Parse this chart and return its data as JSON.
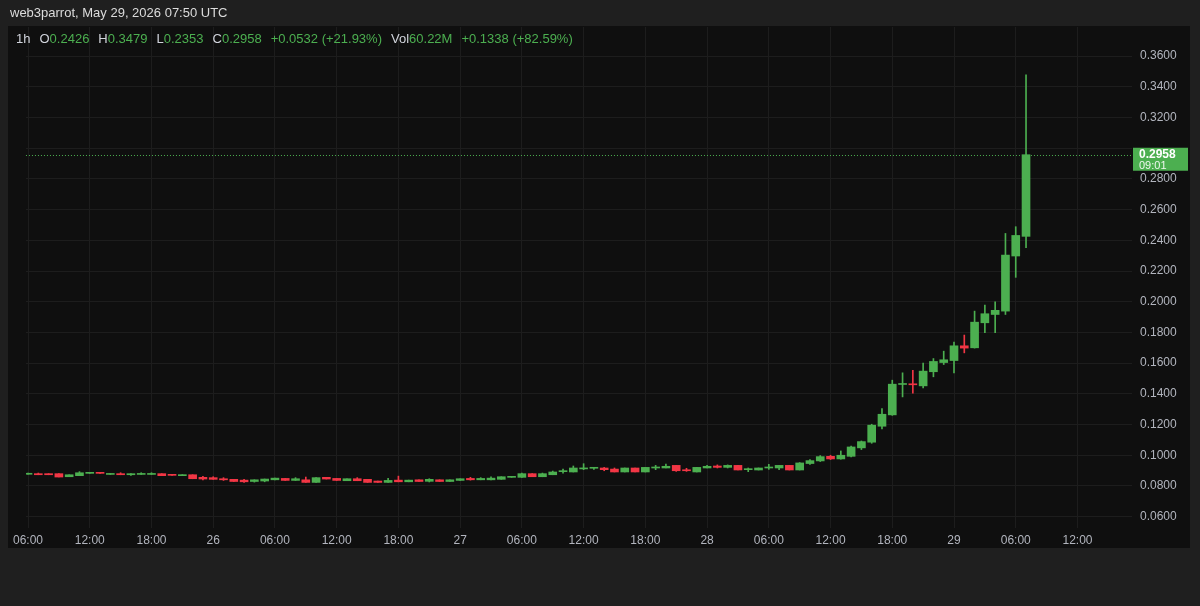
{
  "chart_data": {
    "type": "candlestick",
    "title": "web3parrot, May 29, 2026 07:50 UTC",
    "subtitle": "1h",
    "annotations": [
      "O0.2426",
      "H0.3479",
      "L0.2353",
      "C0.2958",
      "+0.0532 (+21.93%)",
      "Vol60.22M",
      "+0.1338 (+82.59%)"
    ],
    "x": [
      "2026-05-25T06:00",
      "2026-05-25T07:00",
      "2026-05-25T08:00",
      "2026-05-25T09:00",
      "2026-05-25T10:00",
      "2026-05-25T11:00",
      "2026-05-25T12:00",
      "2026-05-25T13:00",
      "2026-05-25T14:00",
      "2026-05-25T15:00",
      "2026-05-25T16:00",
      "2026-05-25T17:00",
      "2026-05-25T18:00",
      "2026-05-25T19:00",
      "2026-05-25T20:00",
      "2026-05-25T21:00",
      "2026-05-25T22:00",
      "2026-05-25T23:00",
      "2026-05-26T00:00",
      "2026-05-26T01:00",
      "2026-05-26T02:00",
      "2026-05-26T03:00",
      "2026-05-26T04:00",
      "2026-05-26T05:00",
      "2026-05-26T06:00",
      "2026-05-26T07:00",
      "2026-05-26T08:00",
      "2026-05-26T09:00",
      "2026-05-26T10:00",
      "2026-05-26T11:00",
      "2026-05-26T12:00",
      "2026-05-26T13:00",
      "2026-05-26T14:00",
      "2026-05-26T15:00",
      "2026-05-26T16:00",
      "2026-05-26T17:00",
      "2026-05-26T18:00",
      "2026-05-26T19:00",
      "2026-05-26T20:00",
      "2026-05-26T21:00",
      "2026-05-26T22:00",
      "2026-05-26T23:00",
      "2026-05-27T00:00",
      "2026-05-27T01:00",
      "2026-05-27T02:00",
      "2026-05-27T03:00",
      "2026-05-27T04:00",
      "2026-05-27T05:00",
      "2026-05-27T06:00",
      "2026-05-27T07:00",
      "2026-05-27T08:00",
      "2026-05-27T09:00",
      "2026-05-27T10:00",
      "2026-05-27T11:00",
      "2026-05-27T12:00",
      "2026-05-27T13:00",
      "2026-05-27T14:00",
      "2026-05-27T15:00",
      "2026-05-27T16:00",
      "2026-05-27T17:00",
      "2026-05-27T18:00",
      "2026-05-27T19:00",
      "2026-05-27T20:00",
      "2026-05-27T21:00",
      "2026-05-27T22:00",
      "2026-05-27T23:00",
      "2026-05-28T00:00",
      "2026-05-28T01:00",
      "2026-05-28T02:00",
      "2026-05-28T03:00",
      "2026-05-28T04:00",
      "2026-05-28T05:00",
      "2026-05-28T06:00",
      "2026-05-28T07:00",
      "2026-05-28T08:00",
      "2026-05-28T09:00",
      "2026-05-28T10:00",
      "2026-05-28T11:00",
      "2026-05-28T12:00",
      "2026-05-28T13:00",
      "2026-05-28T14:00",
      "2026-05-28T15:00",
      "2026-05-28T16:00",
      "2026-05-28T17:00",
      "2026-05-28T18:00",
      "2026-05-28T19:00",
      "2026-05-28T20:00",
      "2026-05-28T21:00",
      "2026-05-28T22:00",
      "2026-05-28T23:00",
      "2026-05-29T00:00",
      "2026-05-29T01:00",
      "2026-05-29T02:00",
      "2026-05-29T03:00",
      "2026-05-29T04:00",
      "2026-05-29T05:00",
      "2026-05-29T06:00",
      "2026-05-29T07:00"
    ],
    "ohlc": [
      [
        0.0876,
        0.0884,
        0.0876,
        0.088
      ],
      [
        0.088,
        0.0884,
        0.0873,
        0.0873
      ],
      [
        0.088,
        0.088,
        0.0873,
        0.0873
      ],
      [
        0.088,
        0.088,
        0.0858,
        0.0858
      ],
      [
        0.086,
        0.0873,
        0.086,
        0.0873
      ],
      [
        0.0867,
        0.0893,
        0.0867,
        0.0886
      ],
      [
        0.0882,
        0.0884,
        0.0882,
        0.0884
      ],
      [
        0.0884,
        0.0884,
        0.0882,
        0.0882
      ],
      [
        0.0875,
        0.088,
        0.0875,
        0.088
      ],
      [
        0.088,
        0.0886,
        0.0873,
        0.0873
      ],
      [
        0.0873,
        0.088,
        0.0869,
        0.088
      ],
      [
        0.0875,
        0.0886,
        0.0875,
        0.088
      ],
      [
        0.0875,
        0.0886,
        0.0875,
        0.088
      ],
      [
        0.088,
        0.088,
        0.0867,
        0.0867
      ],
      [
        0.0873,
        0.0873,
        0.0869,
        0.0869
      ],
      [
        0.0867,
        0.0873,
        0.0867,
        0.0873
      ],
      [
        0.0873,
        0.0873,
        0.0847,
        0.0847
      ],
      [
        0.0856,
        0.0862,
        0.084,
        0.0845
      ],
      [
        0.0854,
        0.086,
        0.0843,
        0.0843
      ],
      [
        0.0847,
        0.0854,
        0.0836,
        0.084
      ],
      [
        0.0843,
        0.0843,
        0.0829,
        0.0829
      ],
      [
        0.0838,
        0.0843,
        0.0823,
        0.0827
      ],
      [
        0.0829,
        0.084,
        0.0825,
        0.084
      ],
      [
        0.0832,
        0.0845,
        0.0827,
        0.0845
      ],
      [
        0.084,
        0.0851,
        0.084,
        0.0851
      ],
      [
        0.0849,
        0.0849,
        0.0836,
        0.0836
      ],
      [
        0.0836,
        0.0854,
        0.0836,
        0.0847
      ],
      [
        0.084,
        0.0858,
        0.0823,
        0.0823
      ],
      [
        0.0823,
        0.0854,
        0.0823,
        0.0854
      ],
      [
        0.0856,
        0.0856,
        0.0845,
        0.0845
      ],
      [
        0.0849,
        0.0849,
        0.0836,
        0.0836
      ],
      [
        0.0834,
        0.0847,
        0.0834,
        0.0847
      ],
      [
        0.0847,
        0.0854,
        0.0834,
        0.0834
      ],
      [
        0.0843,
        0.0843,
        0.0823,
        0.0823
      ],
      [
        0.0832,
        0.0832,
        0.0823,
        0.0823
      ],
      [
        0.0823,
        0.0849,
        0.0823,
        0.0836
      ],
      [
        0.0838,
        0.0864,
        0.0827,
        0.0827
      ],
      [
        0.0827,
        0.0838,
        0.0827,
        0.0838
      ],
      [
        0.084,
        0.084,
        0.0829,
        0.0829
      ],
      [
        0.083,
        0.0847,
        0.0826,
        0.0843
      ],
      [
        0.084,
        0.084,
        0.0829,
        0.0829
      ],
      [
        0.0829,
        0.084,
        0.0829,
        0.084
      ],
      [
        0.0836,
        0.0847,
        0.0836,
        0.0847
      ],
      [
        0.0849,
        0.0856,
        0.0838,
        0.084
      ],
      [
        0.084,
        0.0854,
        0.084,
        0.0849
      ],
      [
        0.084,
        0.086,
        0.084,
        0.0851
      ],
      [
        0.0843,
        0.086,
        0.0843,
        0.086
      ],
      [
        0.0856,
        0.086,
        0.0856,
        0.086
      ],
      [
        0.0856,
        0.0884,
        0.0856,
        0.088
      ],
      [
        0.088,
        0.088,
        0.086,
        0.086
      ],
      [
        0.086,
        0.0884,
        0.086,
        0.088
      ],
      [
        0.0873,
        0.0897,
        0.0873,
        0.0891
      ],
      [
        0.0893,
        0.091,
        0.0884,
        0.0895
      ],
      [
        0.0891,
        0.093,
        0.0891,
        0.0917
      ],
      [
        0.0911,
        0.0945,
        0.0906,
        0.0913
      ],
      [
        0.0915,
        0.0921,
        0.0908,
        0.0921
      ],
      [
        0.0917,
        0.0921,
        0.0899,
        0.0906
      ],
      [
        0.091,
        0.0917,
        0.0891,
        0.0891
      ],
      [
        0.0891,
        0.0917,
        0.0891,
        0.0917
      ],
      [
        0.0917,
        0.0917,
        0.0891,
        0.0891
      ],
      [
        0.0891,
        0.0921,
        0.0891,
        0.0921
      ],
      [
        0.0917,
        0.0934,
        0.0906,
        0.0923
      ],
      [
        0.0917,
        0.0943,
        0.0917,
        0.0928
      ],
      [
        0.0934,
        0.0934,
        0.0895,
        0.0899
      ],
      [
        0.0904,
        0.0915,
        0.0895,
        0.0899
      ],
      [
        0.0891,
        0.0921,
        0.0891,
        0.0921
      ],
      [
        0.0917,
        0.0934,
        0.0917,
        0.0928
      ],
      [
        0.093,
        0.0937,
        0.0917,
        0.0921
      ],
      [
        0.0921,
        0.0937,
        0.0917,
        0.0934
      ],
      [
        0.0934,
        0.0934,
        0.0904,
        0.0904
      ],
      [
        0.0906,
        0.0917,
        0.0893,
        0.0908
      ],
      [
        0.0904,
        0.0917,
        0.0904,
        0.0917
      ],
      [
        0.0917,
        0.0941,
        0.0908,
        0.0923
      ],
      [
        0.0917,
        0.0934,
        0.0906,
        0.0934
      ],
      [
        0.0934,
        0.0934,
        0.0904,
        0.0904
      ],
      [
        0.0904,
        0.0952,
        0.0904,
        0.095
      ],
      [
        0.0946,
        0.0972,
        0.0941,
        0.0965
      ],
      [
        0.0963,
        0.0998,
        0.0959,
        0.0991
      ],
      [
        0.0993,
        0.1,
        0.0972,
        0.0976
      ],
      [
        0.0976,
        0.1028,
        0.0974,
        0.1
      ],
      [
        0.0993,
        0.1059,
        0.0989,
        0.1054
      ],
      [
        0.1048,
        0.1093,
        0.1037,
        0.1089
      ],
      [
        0.1085,
        0.1202,
        0.1078,
        0.1196
      ],
      [
        0.1189,
        0.1304,
        0.1172,
        0.1267
      ],
      [
        0.1263,
        0.1489,
        0.126,
        0.1463
      ],
      [
        0.1461,
        0.1537,
        0.138,
        0.1463
      ],
      [
        0.1463,
        0.1554,
        0.1404,
        0.1459
      ],
      [
        0.1452,
        0.16,
        0.1439,
        0.1548
      ],
      [
        0.1544,
        0.163,
        0.1511,
        0.1611
      ],
      [
        0.1604,
        0.1678,
        0.1591,
        0.1622
      ],
      [
        0.1617,
        0.1737,
        0.1537,
        0.1713
      ],
      [
        0.1713,
        0.1783,
        0.1667,
        0.1698
      ],
      [
        0.17,
        0.1939,
        0.1698,
        0.1867
      ],
      [
        0.1863,
        0.1978,
        0.1798,
        0.1922
      ],
      [
        0.1917,
        0.2,
        0.1798,
        0.1944
      ],
      [
        0.1939,
        0.2445,
        0.1917,
        0.2304
      ],
      [
        0.2298,
        0.2489,
        0.2159,
        0.2432
      ],
      [
        0.2426,
        0.3479,
        0.2353,
        0.2958
      ]
    ],
    "colors": [
      "#4caf50",
      "#f23645",
      "#f23645",
      "#f23645",
      "#4caf50",
      "#4caf50",
      "#4caf50",
      "#f23645",
      "#4caf50",
      "#f23645",
      "#4caf50",
      "#4caf50",
      "#4caf50",
      "#f23645",
      "#f23645",
      "#4caf50",
      "#f23645",
      "#f23645",
      "#f23645",
      "#f23645",
      "#f23645",
      "#f23645",
      "#4caf50",
      "#4caf50",
      "#4caf50",
      "#f23645",
      "#4caf50",
      "#f23645",
      "#4caf50",
      "#f23645",
      "#f23645",
      "#4caf50",
      "#f23645",
      "#f23645",
      "#f23645",
      "#4caf50",
      "#f23645",
      "#4caf50",
      "#f23645",
      "#4caf50",
      "#f23645",
      "#4caf50",
      "#4caf50",
      "#f23645",
      "#4caf50",
      "#4caf50",
      "#4caf50",
      "#4caf50",
      "#4caf50",
      "#f23645",
      "#4caf50",
      "#4caf50",
      "#4caf50",
      "#4caf50",
      "#4caf50",
      "#4caf50",
      "#f23645",
      "#f23645",
      "#4caf50",
      "#f23645",
      "#4caf50",
      "#4caf50",
      "#4caf50",
      "#f23645",
      "#f23645",
      "#4caf50",
      "#4caf50",
      "#f23645",
      "#4caf50",
      "#f23645",
      "#4caf50",
      "#4caf50",
      "#4caf50",
      "#4caf50",
      "#f23645",
      "#4caf50",
      "#4caf50",
      "#4caf50",
      "#f23645",
      "#4caf50",
      "#4caf50",
      "#4caf50",
      "#4caf50",
      "#4caf50",
      "#4caf50",
      "#4caf50",
      "#f23645",
      "#4caf50",
      "#4caf50",
      "#4caf50",
      "#4caf50",
      "#f23645",
      "#4caf50",
      "#4caf50",
      "#4caf50",
      "#4caf50",
      "#4caf50",
      "#4caf50"
    ],
    "xlim": [
      "2026-05-25T05:48",
      "2026-05-29T17:18"
    ],
    "xticks": [
      {
        "value": "2026-05-25T06:00",
        "label": "06:00"
      },
      {
        "value": "2026-05-25T12:00",
        "label": "12:00"
      },
      {
        "value": "2026-05-25T18:00",
        "label": "18:00"
      },
      {
        "value": "2026-05-26T00:00",
        "label": "26"
      },
      {
        "value": "2026-05-26T06:00",
        "label": "06:00"
      },
      {
        "value": "2026-05-26T12:00",
        "label": "12:00"
      },
      {
        "value": "2026-05-26T18:00",
        "label": "18:00"
      },
      {
        "value": "2026-05-27T00:00",
        "label": "27"
      },
      {
        "value": "2026-05-27T06:00",
        "label": "06:00"
      },
      {
        "value": "2026-05-27T12:00",
        "label": "12:00"
      },
      {
        "value": "2026-05-27T18:00",
        "label": "18:00"
      },
      {
        "value": "2026-05-28T00:00",
        "label": "28"
      },
      {
        "value": "2026-05-28T06:00",
        "label": "06:00"
      },
      {
        "value": "2026-05-28T12:00",
        "label": "12:00"
      },
      {
        "value": "2026-05-28T18:00",
        "label": "18:00"
      },
      {
        "value": "2026-05-29T00:00",
        "label": "29"
      },
      {
        "value": "2026-05-29T06:00",
        "label": "06:00"
      },
      {
        "value": "2026-05-29T12:00",
        "label": "12:00"
      }
    ],
    "ylim": [
      0.0526,
      0.379
    ],
    "yticks": [
      {
        "value": 0.06,
        "label": "0.0600"
      },
      {
        "value": 0.08,
        "label": "0.0800"
      },
      {
        "value": 0.1,
        "label": "0.1000"
      },
      {
        "value": 0.12,
        "label": "0.1200"
      },
      {
        "value": 0.14,
        "label": "0.1400"
      },
      {
        "value": 0.16,
        "label": "0.1600"
      },
      {
        "value": 0.18,
        "label": "0.1800"
      },
      {
        "value": 0.2,
        "label": "0.2000"
      },
      {
        "value": 0.22,
        "label": "0.2200"
      },
      {
        "value": 0.24,
        "label": "0.2400"
      },
      {
        "value": 0.26,
        "label": "0.2600"
      },
      {
        "value": 0.28,
        "label": "0.2800"
      },
      {
        "value": 0.3,
        "label": null
      },
      {
        "value": 0.32,
        "label": "0.3200"
      },
      {
        "value": 0.34,
        "label": "0.3400"
      },
      {
        "value": 0.36,
        "label": "0.3600"
      }
    ],
    "grid": true,
    "ref_lines": [
      {
        "axis": "y",
        "value": 0.2958,
        "label": "0.2958\n09:01",
        "color": "#4caf50",
        "line_style": "dotted"
      }
    ]
  }
}
